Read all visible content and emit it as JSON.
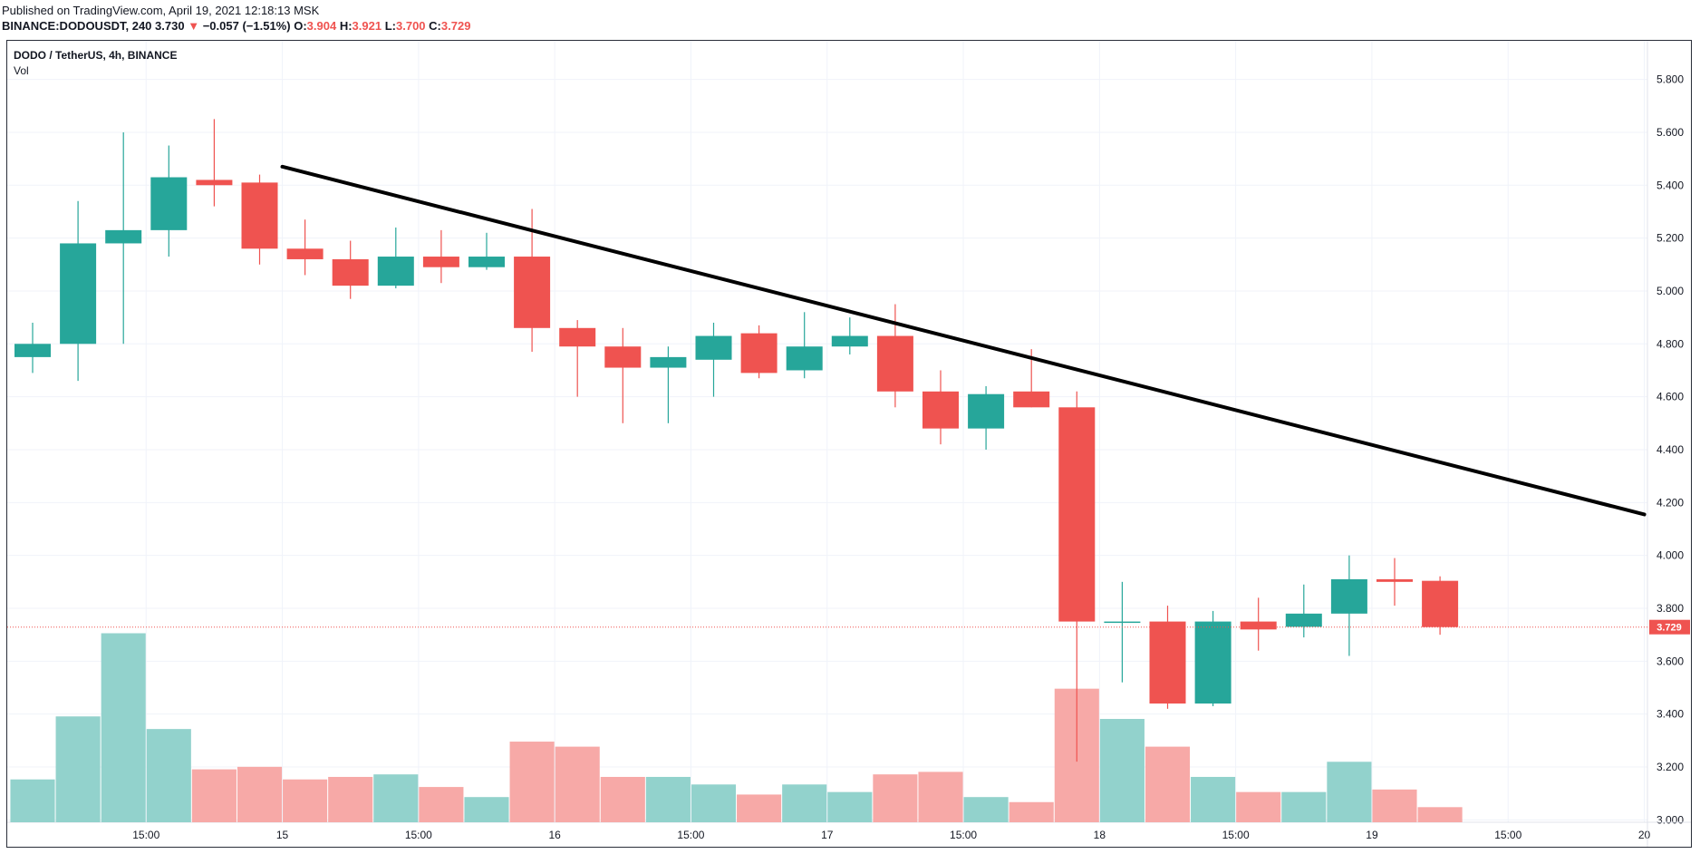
{
  "header": {
    "published": "Published on TradingView.com, April 19, 2021 12:18:13 MSK",
    "symbol": "BINANCE:DODOUSDT, 240",
    "last": "3.730",
    "change_arrow": "▼",
    "change": "−0.057 (−1.51%)",
    "o_label": "O:",
    "o_value": "3.904",
    "h_label": "H:",
    "h_value": "3.921",
    "l_label": "L:",
    "l_value": "3.700",
    "c_label": "C:",
    "c_value": "3.729"
  },
  "legend": {
    "title": "DODO / TetherUS, 4h, BINANCE",
    "volume": "Vol"
  },
  "colors": {
    "up": "#26a69a",
    "down": "#ef5350",
    "vol_up": "#92d2cc",
    "vol_down": "#f7a9a7",
    "trendline": "#000000",
    "grid": "#f0f3fa",
    "price_label_bg": "#ef5350"
  },
  "chart_data": {
    "type": "candlestick",
    "symbol": "DODOUSDT",
    "interval": "4h",
    "y_ticks": [
      "5.800",
      "5.600",
      "5.400",
      "5.200",
      "5.000",
      "4.800",
      "4.600",
      "4.400",
      "4.200",
      "4.000",
      "3.800",
      "3.600",
      "3.400",
      "3.200",
      "3.000"
    ],
    "ylim": [
      2.99,
      5.87
    ],
    "x_ticks": [
      {
        "label": "15:00",
        "bar": 2.5
      },
      {
        "label": "15",
        "bar": 5.5
      },
      {
        "label": "15:00",
        "bar": 8.5
      },
      {
        "label": "16",
        "bar": 11.5
      },
      {
        "label": "15:00",
        "bar": 14.5
      },
      {
        "label": "17",
        "bar": 17.5
      },
      {
        "label": "15:00",
        "bar": 20.5
      },
      {
        "label": "18",
        "bar": 23.5
      },
      {
        "label": "15:00",
        "bar": 26.5
      },
      {
        "label": "19",
        "bar": 29.5
      },
      {
        "label": "15:00",
        "bar": 32.5
      },
      {
        "label": "20",
        "bar": 35.5
      }
    ],
    "last_price": "3.729",
    "last_price_value": 3.729,
    "candles": [
      {
        "o": 4.75,
        "h": 4.88,
        "l": 4.69,
        "c": 4.8
      },
      {
        "o": 4.8,
        "h": 5.34,
        "l": 4.66,
        "c": 5.18
      },
      {
        "o": 5.18,
        "h": 5.6,
        "l": 4.8,
        "c": 5.23
      },
      {
        "o": 5.23,
        "h": 5.55,
        "l": 5.13,
        "c": 5.43
      },
      {
        "o": 5.42,
        "h": 5.65,
        "l": 5.32,
        "c": 5.4
      },
      {
        "o": 5.41,
        "h": 5.44,
        "l": 5.1,
        "c": 5.16
      },
      {
        "o": 5.16,
        "h": 5.27,
        "l": 5.06,
        "c": 5.12
      },
      {
        "o": 5.12,
        "h": 5.19,
        "l": 4.97,
        "c": 5.02
      },
      {
        "o": 5.02,
        "h": 5.24,
        "l": 5.01,
        "c": 5.13
      },
      {
        "o": 5.13,
        "h": 5.23,
        "l": 5.03,
        "c": 5.09
      },
      {
        "o": 5.09,
        "h": 5.22,
        "l": 5.08,
        "c": 5.13
      },
      {
        "o": 5.13,
        "h": 5.31,
        "l": 4.77,
        "c": 4.86
      },
      {
        "o": 4.86,
        "h": 4.89,
        "l": 4.6,
        "c": 4.79
      },
      {
        "o": 4.79,
        "h": 4.86,
        "l": 4.5,
        "c": 4.71
      },
      {
        "o": 4.71,
        "h": 4.79,
        "l": 4.5,
        "c": 4.75
      },
      {
        "o": 4.74,
        "h": 4.88,
        "l": 4.6,
        "c": 4.83
      },
      {
        "o": 4.84,
        "h": 4.87,
        "l": 4.67,
        "c": 4.69
      },
      {
        "o": 4.7,
        "h": 4.92,
        "l": 4.67,
        "c": 4.79
      },
      {
        "o": 4.79,
        "h": 4.9,
        "l": 4.76,
        "c": 4.83
      },
      {
        "o": 4.83,
        "h": 4.95,
        "l": 4.56,
        "c": 4.62
      },
      {
        "o": 4.62,
        "h": 4.7,
        "l": 4.42,
        "c": 4.48
      },
      {
        "o": 4.48,
        "h": 4.64,
        "l": 4.4,
        "c": 4.61
      },
      {
        "o": 4.62,
        "h": 4.78,
        "l": 4.56,
        "c": 4.56
      },
      {
        "o": 4.56,
        "h": 4.62,
        "l": 3.22,
        "c": 3.75
      },
      {
        "o": 3.75,
        "h": 3.9,
        "l": 3.52,
        "c": 3.75
      },
      {
        "o": 3.75,
        "h": 3.81,
        "l": 3.42,
        "c": 3.44
      },
      {
        "o": 3.44,
        "h": 3.79,
        "l": 3.43,
        "c": 3.75
      },
      {
        "o": 3.75,
        "h": 3.84,
        "l": 3.64,
        "c": 3.72
      },
      {
        "o": 3.73,
        "h": 3.89,
        "l": 3.69,
        "c": 3.78
      },
      {
        "o": 3.78,
        "h": 4.0,
        "l": 3.62,
        "c": 3.91
      },
      {
        "o": 3.91,
        "h": 3.99,
        "l": 3.81,
        "c": 3.9
      },
      {
        "o": 3.904,
        "h": 3.921,
        "l": 3.7,
        "c": 3.729
      }
    ],
    "volume": [
      0.17,
      0.42,
      0.75,
      0.37,
      0.21,
      0.22,
      0.17,
      0.18,
      0.19,
      0.14,
      0.1,
      0.32,
      0.3,
      0.18,
      0.18,
      0.15,
      0.11,
      0.15,
      0.12,
      0.19,
      0.2,
      0.1,
      0.08,
      0.53,
      0.41,
      0.3,
      0.18,
      0.12,
      0.12,
      0.24,
      0.13,
      0.06
    ],
    "trendline": {
      "from": {
        "bar": 5.5,
        "price": 5.47
      },
      "to": {
        "bar": 35.5,
        "price": 4.155
      }
    }
  }
}
